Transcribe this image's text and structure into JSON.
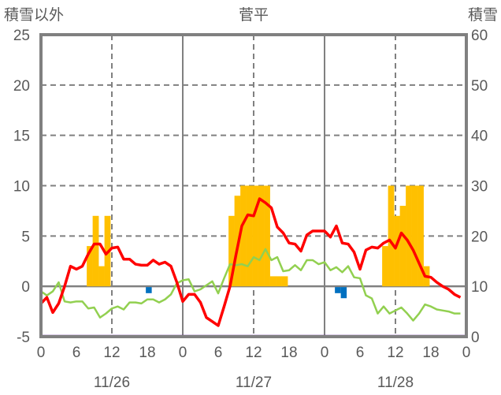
{
  "chart_data": {
    "type": "bar+line",
    "title": "菅平",
    "ylabel_left": "積雪以外",
    "ylabel_right": "積雪",
    "ylim_left": [
      -5,
      25
    ],
    "ylim_right": [
      0,
      60
    ],
    "yticks_left": [
      "25",
      "20",
      "15",
      "10",
      "5",
      "0",
      "-5"
    ],
    "yticks_right": [
      "60",
      "50",
      "40",
      "30",
      "20",
      "10",
      "0"
    ],
    "xticks": [
      "0",
      "6",
      "12",
      "18",
      "0",
      "6",
      "12",
      "18",
      "0",
      "6",
      "12",
      "18",
      "0"
    ],
    "dates": [
      "11/26",
      "11/27",
      "11/28"
    ],
    "x_hours": 72,
    "grid": true,
    "colors": {
      "snow_depth": "#FFC000",
      "snow_change": "#0070C0",
      "red_series": "#FF0000",
      "green_series": "#92D050",
      "purple_series": "#7030A0",
      "axis": "#808080"
    },
    "snow_depth_bars": [
      {
        "hour": 8,
        "value": 18
      },
      {
        "hour": 9,
        "value": 24
      },
      {
        "hour": 10,
        "value": 14
      },
      {
        "hour": 11,
        "value": 24
      },
      {
        "hour": 32,
        "value": 24
      },
      {
        "hour": 33,
        "value": 28
      },
      {
        "hour": 34,
        "value": 30
      },
      {
        "hour": 35,
        "value": 30
      },
      {
        "hour": 36,
        "value": 30
      },
      {
        "hour": 37,
        "value": 30
      },
      {
        "hour": 38,
        "value": 30
      },
      {
        "hour": 39,
        "value": 12
      },
      {
        "hour": 40,
        "value": 12
      },
      {
        "hour": 41,
        "value": 12
      },
      {
        "hour": 58,
        "value": 18
      },
      {
        "hour": 59,
        "value": 30
      },
      {
        "hour": 60,
        "value": 24
      },
      {
        "hour": 61,
        "value": 26
      },
      {
        "hour": 62,
        "value": 30
      },
      {
        "hour": 63,
        "value": 30
      },
      {
        "hour": 64,
        "value": 30
      },
      {
        "hour": 65,
        "value": 14
      }
    ],
    "snow_change_bars": [
      {
        "hour": 18,
        "value": -0.6
      },
      {
        "hour": 50,
        "value": -0.6
      },
      {
        "hour": 51,
        "value": -1.1
      }
    ],
    "red_series": [
      -1.7,
      -1.1,
      -2.6,
      -1.7,
      0,
      2.0,
      1.7,
      2.0,
      3.2,
      4.2,
      4.2,
      3.2,
      3.8,
      3.9,
      2.7,
      2.7,
      2.2,
      2.1,
      2.1,
      2.6,
      2.2,
      2.4,
      2.0,
      0.4,
      -1.5,
      -0.8,
      -0.8,
      -1.6,
      -3.1,
      -3.5,
      -3.9,
      -2.0,
      0,
      3.1,
      6.0,
      7.1,
      7.0,
      8.7,
      8.3,
      7.8,
      5.9,
      5.3,
      4.3,
      4.2,
      3.5,
      5.1,
      5.5,
      5.5,
      5.5,
      4.9,
      6.0,
      4.3,
      4.2,
      3.4,
      1.7,
      3.6,
      3.9,
      3.8,
      4.3,
      4.6,
      3.8,
      5.3,
      4.6,
      3.6,
      2.3,
      1.0,
      0.9,
      0.4,
      0,
      -0.3,
      -0.8,
      -1.1
    ],
    "green_series": [
      -0.5,
      -0.9,
      -0.5,
      0.4,
      -1.5,
      -1.6,
      -1.5,
      -1.5,
      -2.2,
      -2.1,
      -3.1,
      -2.7,
      -2.2,
      -2.0,
      -2.3,
      -1.6,
      -1.6,
      -1.7,
      -1.3,
      -1.3,
      -1.6,
      -1.3,
      -0.8,
      0.3,
      0.6,
      0.7,
      -0.5,
      -0.3,
      0.1,
      0.5,
      -0.7,
      0.8,
      2.2,
      2.1,
      2.2,
      2.0,
      2.9,
      2.6,
      3.7,
      2.6,
      2.9,
      1.5,
      1.6,
      2.1,
      1.6,
      2.6,
      2.6,
      2.2,
      2.4,
      1.6,
      1.9,
      1.4,
      2.0,
      0.9,
      0.8,
      -0.9,
      -1.2,
      -2.7,
      -2.0,
      -2.7,
      -2.4,
      -2.1,
      -2.7,
      -3.4,
      -2.7,
      -1.8,
      -2.0,
      -2.3,
      -2.4,
      -2.5,
      -2.7,
      -2.7
    ],
    "purple_series_value": -5
  }
}
